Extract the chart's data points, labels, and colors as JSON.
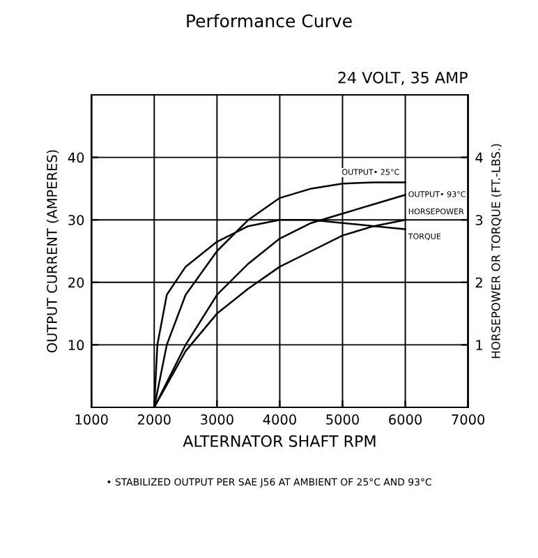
{
  "chart_data": {
    "type": "line",
    "title": "Performance Curve",
    "xlabel": "ALTERNATOR SHAFT RPM",
    "ylabel": "OUTPUT CURRENT (AMPERES)",
    "y2label": "HORSEPOWER OR TORQUE (FT.-LBS.)",
    "annotations": [
      "24 VOLT, 35 AMP",
      "• STABILIZED OUTPUT PER SAE J56 AT AMBIENT OF 25°C AND 93°C"
    ],
    "series": [
      {
        "name": "OUTPUT• 25°C",
        "color": "#000000",
        "x": [
          2000,
          2200,
          2500,
          3000,
          3500,
          4000,
          4500,
          5000,
          5500,
          6000
        ],
        "values": [
          0,
          10,
          18,
          25,
          30,
          33.5,
          35,
          35.8,
          36,
          36
        ]
      },
      {
        "name": "OUTPUT• 93°C",
        "color": "#000000",
        "x": [
          2000,
          2500,
          3000,
          3500,
          4000,
          4500,
          5000,
          5500,
          6000
        ],
        "values": [
          0,
          10,
          18,
          23,
          27,
          29.5,
          31,
          32.5,
          34
        ]
      },
      {
        "name": "TORQUE",
        "color": "#000000",
        "axis": "y2",
        "x": [
          2000,
          2050,
          2200,
          2500,
          3000,
          3500,
          4000,
          4500,
          5000,
          5500,
          6000
        ],
        "values": [
          0,
          1.0,
          1.8,
          2.25,
          2.65,
          2.9,
          3.0,
          3.0,
          2.95,
          2.9,
          2.85
        ]
      },
      {
        "name": "HORSEPOWER",
        "color": "#000000",
        "axis": "y2",
        "x": [
          2000,
          2500,
          3000,
          3500,
          4000,
          4500,
          5000,
          5500,
          6000
        ],
        "values": [
          0,
          0.9,
          1.5,
          1.9,
          2.25,
          2.5,
          2.75,
          2.9,
          3.0
        ]
      }
    ],
    "xlim": [
      1000,
      7000
    ],
    "xticks": [
      1000,
      2000,
      3000,
      4000,
      5000,
      6000,
      7000
    ],
    "ylim": [
      0,
      50
    ],
    "yticks": [
      10,
      20,
      30,
      40
    ],
    "y2lim": [
      0,
      5
    ],
    "y2ticks": [
      1,
      2,
      3,
      4
    ],
    "grid": true,
    "legend": false,
    "marker": "none",
    "line_style": "solid"
  }
}
